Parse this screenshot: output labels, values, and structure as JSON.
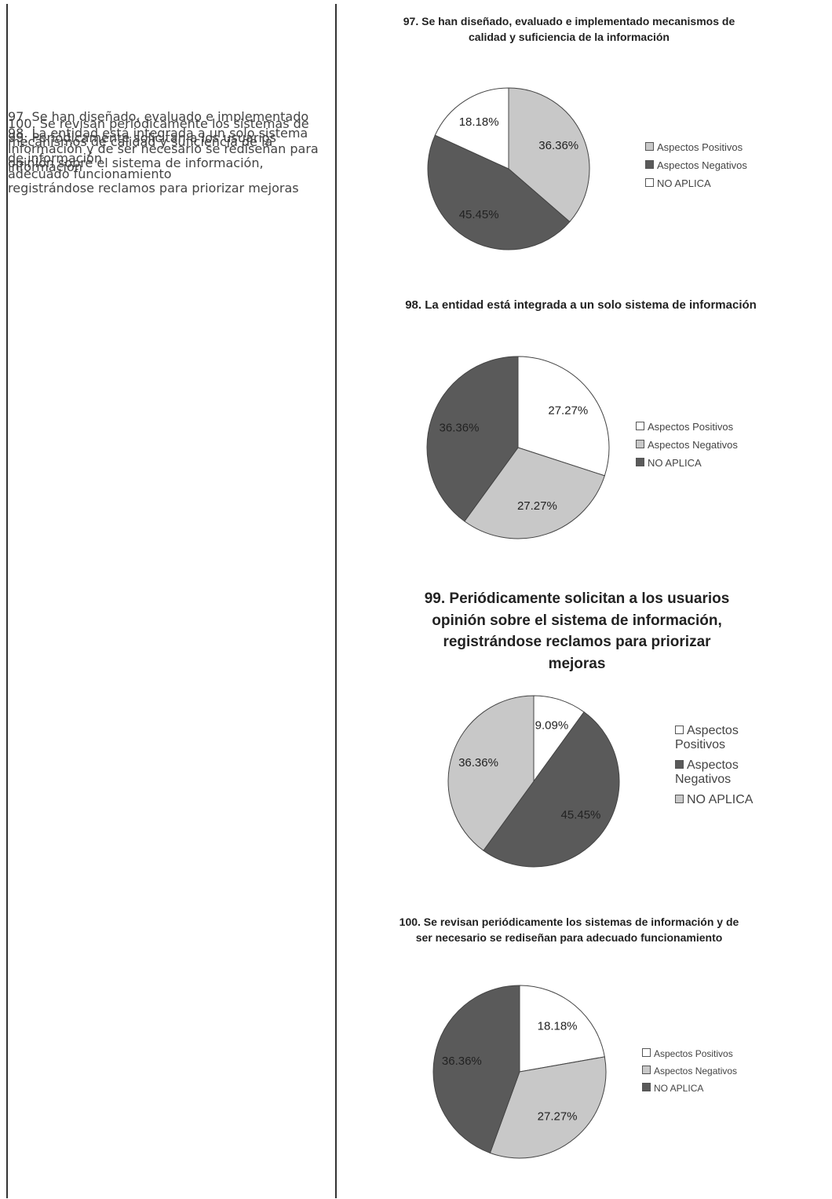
{
  "rows": [
    {
      "text": "97. Se han diseñado, evaluado e implementado mecanismos de calidad y suficiencia de la información",
      "chart": {
        "type": "pie",
        "title": "97. Se han diseñado, evaluado e implementado mecanismos de calidad y suficiencia de la información",
        "categories": [
          "Aspectos Positivos",
          "Aspectos Negativos",
          "NO APLICA"
        ],
        "values": [
          36.36,
          45.45,
          18.18
        ],
        "value_labels": [
          "36.36%",
          "45.45%",
          "18.18%"
        ],
        "colors": [
          "#c8c8c8",
          "#5a5a5a",
          "#ffffff"
        ]
      }
    },
    {
      "text": "98. La entidad está integrada a un solo sistema de información",
      "chart": {
        "type": "pie",
        "title": "98. La entidad está integrada a un solo sistema de información",
        "categories": [
          "Aspectos Positivos",
          "Aspectos Negativos",
          "NO APLICA"
        ],
        "values": [
          27.27,
          27.27,
          36.36
        ],
        "value_labels": [
          "27.27%",
          "27.27%",
          "36.36%"
        ],
        "colors": [
          "#ffffff",
          "#c8c8c8",
          "#5a5a5a"
        ]
      }
    },
    {
      "text": "99. Periódicamente solicitan a los usuarios opinión sobre el sistema de información, registrándose reclamos para priorizar mejoras",
      "chart": {
        "type": "pie",
        "title": "99. Periódicamente solicitan a los usuarios opinión sobre el sistema de información, registrándose reclamos para priorizar mejoras",
        "categories": [
          "Aspectos Positivos",
          "Aspectos Negativos",
          "NO APLICA"
        ],
        "values": [
          9.09,
          45.45,
          36.36
        ],
        "value_labels": [
          "9.09%",
          "45.45%",
          "36.36%"
        ],
        "colors": [
          "#ffffff",
          "#5a5a5a",
          "#c8c8c8"
        ]
      }
    },
    {
      "text": "100. Se revisan periódicamente los sistemas de información y de ser necesario se rediseñan para adecuado funcionamiento",
      "chart": {
        "type": "pie",
        "title": "100. Se revisan periódicamente los sistemas de información y de ser necesario se rediseñan para adecuado funcionamiento",
        "categories": [
          "Aspectos Positivos",
          "Aspectos Negativos",
          "NO APLICA"
        ],
        "values": [
          18.18,
          27.27,
          36.36
        ],
        "value_labels": [
          "18.18%",
          "27.27%",
          "36.36%"
        ],
        "colors": [
          "#ffffff",
          "#c8c8c8",
          "#5a5a5a"
        ]
      }
    }
  ]
}
